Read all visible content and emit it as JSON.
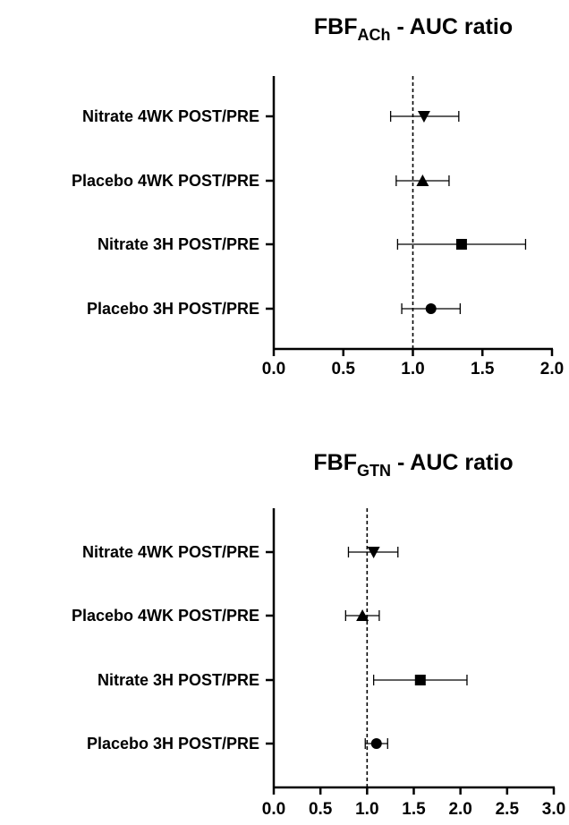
{
  "chart_data": [
    {
      "type": "scatter",
      "title_main": "FBF",
      "title_sub": "ACh",
      "title_rest": " - AUC ratio",
      "categories": [
        "Nitrate 4WK POST/PRE",
        "Placebo 4WK POST/PRE",
        "Nitrate 3H POST/PRE",
        "Placebo 3H POST/PRE"
      ],
      "markers": [
        "triangle-down",
        "triangle-up",
        "square",
        "circle"
      ],
      "values": [
        1.08,
        1.07,
        1.35,
        1.13
      ],
      "ci_low": [
        0.84,
        0.88,
        0.89,
        0.92
      ],
      "ci_high": [
        1.33,
        1.26,
        1.81,
        1.34
      ],
      "xlim": [
        0,
        2
      ],
      "xticks": [
        "0.0",
        "0.5",
        "1.0",
        "1.5",
        "2.0"
      ],
      "reference_line": 1.0
    },
    {
      "type": "scatter",
      "title_main": "FBF",
      "title_sub": "GTN",
      "title_rest": " - AUC ratio",
      "categories": [
        "Nitrate 4WK POST/PRE",
        "Placebo 4WK POST/PRE",
        "Nitrate 3H POST/PRE",
        "Placebo 3H POST/PRE"
      ],
      "markers": [
        "triangle-down",
        "triangle-up",
        "square",
        "circle"
      ],
      "values": [
        1.07,
        0.95,
        1.57,
        1.1
      ],
      "ci_low": [
        0.8,
        0.77,
        1.07,
        0.98
      ],
      "ci_high": [
        1.33,
        1.13,
        2.07,
        1.22
      ],
      "xlim": [
        0,
        3
      ],
      "xticks": [
        "0.0",
        "0.5",
        "1.0",
        "1.5",
        "2.0",
        "2.5",
        "3.0"
      ],
      "reference_line": 1.0
    }
  ]
}
